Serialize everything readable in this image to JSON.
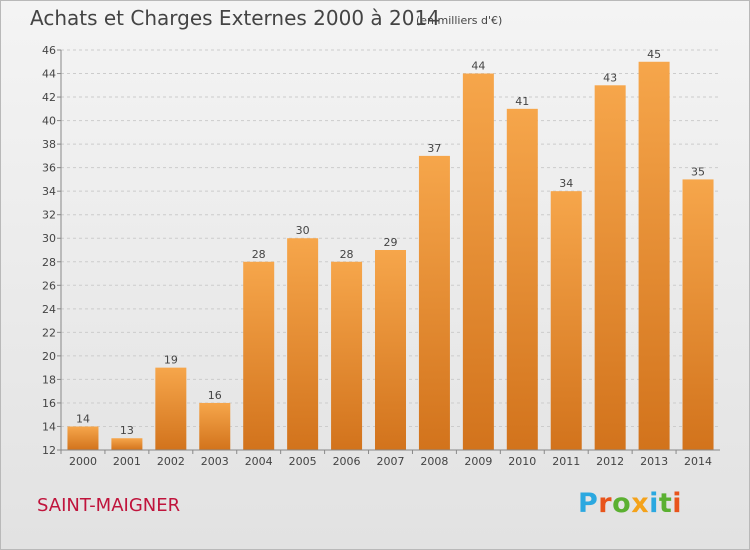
{
  "header": {
    "title": "Achats et Charges Externes 2000 à 2014",
    "subtitle": "(en milliers d'€)"
  },
  "footer": {
    "commune": "SAINT-MAIGNER",
    "logo_text": "Proxiti"
  },
  "colors": {
    "bar_light": "#f6a64b",
    "bar_dark": "#d2731c",
    "axis": "#888888",
    "grid": "#cccccc",
    "text": "#444444",
    "commune": "#c0143c",
    "logo_letters": [
      "#2ba8e0",
      "#e8541b",
      "#5bb031",
      "#f4a21a",
      "#2ba8e0",
      "#5bb031",
      "#e8541b"
    ]
  },
  "chart_data": {
    "type": "bar",
    "title": "Achats et Charges Externes 2000 à 2014",
    "subtitle": "(en milliers d'€)",
    "xlabel": "",
    "ylabel": "",
    "categories": [
      "2000",
      "2001",
      "2002",
      "2003",
      "2004",
      "2005",
      "2006",
      "2007",
      "2008",
      "2009",
      "2010",
      "2011",
      "2012",
      "2013",
      "2014"
    ],
    "values": [
      14,
      13,
      19,
      16,
      28,
      30,
      28,
      29,
      37,
      44,
      41,
      34,
      43,
      45,
      35
    ],
    "ylim": [
      12,
      46
    ],
    "yticks": [
      12,
      14,
      16,
      18,
      20,
      22,
      24,
      26,
      28,
      30,
      32,
      34,
      36,
      38,
      40,
      42,
      44,
      46
    ],
    "grid": "horizontal-dashed",
    "data_labels": true
  }
}
